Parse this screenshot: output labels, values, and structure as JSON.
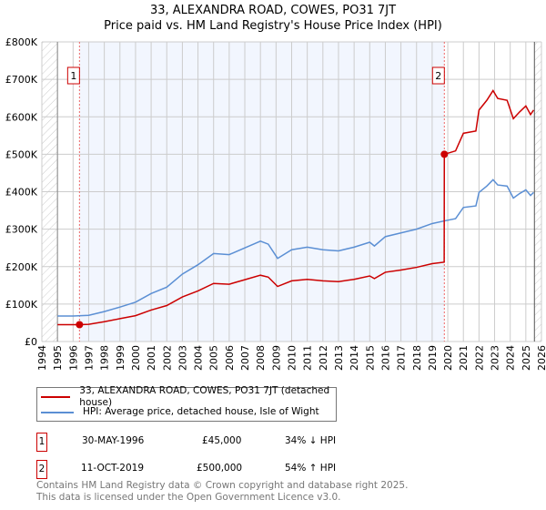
{
  "title": "33, ALEXANDRA ROAD, COWES, PO31 7JT",
  "subtitle": "Price paid vs. HM Land Registry's House Price Index (HPI)",
  "chart_data": {
    "type": "line",
    "xlim": [
      1994,
      2026
    ],
    "ylim": [
      0,
      800000
    ],
    "y_ticks": [
      {
        "v": 0,
        "label": "£0"
      },
      {
        "v": 100000,
        "label": "£100K"
      },
      {
        "v": 200000,
        "label": "£200K"
      },
      {
        "v": 300000,
        "label": "£300K"
      },
      {
        "v": 400000,
        "label": "£400K"
      },
      {
        "v": 500000,
        "label": "£500K"
      },
      {
        "v": 600000,
        "label": "£600K"
      },
      {
        "v": 700000,
        "label": "£700K"
      },
      {
        "v": 800000,
        "label": "£800K"
      }
    ],
    "x_ticks": [
      "1994",
      "1995",
      "1996",
      "1997",
      "1998",
      "1999",
      "2000",
      "2001",
      "2002",
      "2003",
      "2004",
      "2005",
      "2006",
      "2007",
      "2008",
      "2009",
      "2010",
      "2011",
      "2012",
      "2013",
      "2014",
      "2015",
      "2016",
      "2017",
      "2018",
      "2019",
      "2020",
      "2021",
      "2022",
      "2023",
      "2024",
      "2025",
      "2026"
    ],
    "hatched_before": 1995,
    "hatched_after": 2025.55,
    "shaded_range": [
      1996.41,
      2019.78
    ],
    "series": [
      {
        "name": "33, ALEXANDRA ROAD, COWES, PO31 7JT (detached house)",
        "color": "#cc0000",
        "x": [
          1995,
          1996.41,
          1997,
          1998,
          1999,
          2000,
          2001,
          2002,
          2003,
          2004,
          2005,
          2006,
          2007,
          2008,
          2008.5,
          2009.1,
          2010,
          2011,
          2012,
          2013,
          2014,
          2015,
          2015.3,
          2016,
          2017,
          2018,
          2019,
          2019.77,
          2019.78,
          2020.5,
          2021,
          2021.8,
          2022,
          2022.5,
          2022.9,
          2023.2,
          2023.8,
          2024.2,
          2024.6,
          2025,
          2025.3,
          2025.5
        ],
        "y": [
          45000,
          45000,
          46000,
          53000,
          61000,
          69000,
          84000,
          96000,
          119000,
          135000,
          155000,
          153000,
          165000,
          177000,
          172000,
          147000,
          162000,
          166000,
          162000,
          160000,
          166000,
          175000,
          168000,
          185000,
          191000,
          198000,
          208000,
          212000,
          500000,
          509000,
          556000,
          562000,
          618000,
          644000,
          670000,
          649000,
          644000,
          595000,
          613000,
          629000,
          606000,
          618000
        ]
      },
      {
        "name": "HPI: Average price, detached house, Isle of Wight",
        "color": "#5b8fd4",
        "x": [
          1995,
          1996,
          1997,
          1998,
          1999,
          2000,
          2001,
          2002,
          2003,
          2004,
          2005,
          2006,
          2007,
          2008,
          2008.5,
          2009.1,
          2010,
          2011,
          2012,
          2013,
          2014,
          2015,
          2015.3,
          2016,
          2017,
          2018,
          2019,
          2019.78,
          2020.5,
          2021,
          2021.8,
          2022,
          2022.5,
          2022.9,
          2023.2,
          2023.8,
          2024.2,
          2024.6,
          2025,
          2025.3,
          2025.5
        ],
        "y": [
          68000,
          68000,
          70000,
          80000,
          92000,
          105000,
          128000,
          145000,
          180000,
          205000,
          235000,
          232000,
          250000,
          268000,
          260000,
          222000,
          245000,
          252000,
          245000,
          242000,
          252000,
          265000,
          255000,
          280000,
          290000,
          300000,
          315000,
          322000,
          328000,
          358000,
          362000,
          398000,
          415000,
          432000,
          418000,
          415000,
          383000,
          395000,
          405000,
          390000,
          398000
        ]
      }
    ],
    "sales": [
      {
        "label": "1",
        "date": "30-MAY-1996",
        "x": 1996.41,
        "price": "£45,000",
        "value": 45000,
        "hpi": "34% ↓ HPI"
      },
      {
        "label": "2",
        "date": "11-OCT-2019",
        "x": 2019.78,
        "price": "£500,000",
        "value": 500000,
        "hpi": "54% ↑ HPI"
      }
    ]
  },
  "footer": [
    "Contains HM Land Registry data © Crown copyright and database right 2025.",
    "This data is licensed under the Open Government Licence v3.0."
  ]
}
